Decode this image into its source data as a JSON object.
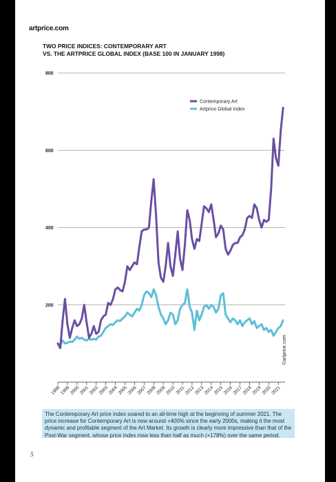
{
  "logo": "artprice.com",
  "title_line1": "TWO PRICE INDICES: CONTEMPORARY ART",
  "title_line2": "VS. THE ARTPRICE GLOBAL INDEX (BASE 100 IN JANUARY 1998)",
  "caption": "The Contemporary Art price index soared to an all-time high at the beginning of summer 2021. The price increase for Contemporary Art is now around +400% since the early 2000s, making it the most dynamic and profitable segment of the Art Market. Its growth is clearly more impressive than that of the Post-War segment, whose price index rose less than half as much (+178%) over the same period.",
  "page_number": "5",
  "chart_data": {
    "type": "line",
    "title": "TWO PRICE INDICES: CONTEMPORARY ART VS. THE ARTPRICE GLOBAL INDEX (BASE 100 IN JANUARY 1998)",
    "xlabel": "",
    "ylabel": "",
    "ylim": [
      0,
      800
    ],
    "xlim": [
      1998,
      2021.7
    ],
    "yticks": [
      200,
      400,
      600,
      800
    ],
    "xticks": [
      "1998",
      "1999",
      "2000",
      "2001",
      "2002",
      "2003",
      "2004",
      "2005",
      "2006",
      "2007",
      "2008",
      "2009",
      "2010",
      "2011",
      "2012",
      "2013",
      "2014",
      "2015",
      "2016",
      "2017",
      "2018",
      "2019",
      "2020",
      "2021"
    ],
    "grid": "horizontal",
    "legend_position": "top-right",
    "watermark": "©artprice.com",
    "colors": {
      "contemporary": "#6a4ea3",
      "global": "#5cbfd6"
    },
    "series": [
      {
        "name": "Contemporary Art",
        "x": [
          1998.0,
          1998.25,
          1998.5,
          1998.75,
          1999.0,
          1999.25,
          1999.5,
          1999.75,
          2000.0,
          2000.25,
          2000.5,
          2000.75,
          2001.0,
          2001.25,
          2001.5,
          2001.75,
          2002.0,
          2002.25,
          2002.5,
          2002.75,
          2003.0,
          2003.25,
          2003.5,
          2003.75,
          2004.0,
          2004.25,
          2004.5,
          2004.75,
          2005.0,
          2005.25,
          2005.5,
          2005.75,
          2006.0,
          2006.25,
          2006.5,
          2006.75,
          2007.0,
          2007.25,
          2007.5,
          2007.75,
          2008.0,
          2008.25,
          2008.5,
          2008.75,
          2009.0,
          2009.25,
          2009.5,
          2009.75,
          2010.0,
          2010.25,
          2010.5,
          2010.75,
          2011.0,
          2011.25,
          2011.5,
          2011.75,
          2012.0,
          2012.25,
          2012.5,
          2012.75,
          2013.0,
          2013.25,
          2013.5,
          2013.75,
          2014.0,
          2014.25,
          2014.5,
          2014.75,
          2015.0,
          2015.25,
          2015.5,
          2015.75,
          2016.0,
          2016.25,
          2016.5,
          2016.75,
          2017.0,
          2017.25,
          2017.5,
          2017.75,
          2018.0,
          2018.25,
          2018.5,
          2018.75,
          2019.0,
          2019.25,
          2019.5,
          2019.75,
          2020.0,
          2020.25,
          2020.5,
          2020.75,
          2021.0,
          2021.25,
          2021.5
        ],
        "values": [
          100,
          88,
          160,
          215,
          150,
          115,
          140,
          160,
          145,
          150,
          165,
          200,
          155,
          115,
          125,
          145,
          125,
          130,
          160,
          170,
          175,
          205,
          200,
          215,
          240,
          245,
          238,
          235,
          260,
          300,
          290,
          300,
          310,
          305,
          350,
          390,
          395,
          395,
          400,
          470,
          525,
          430,
          310,
          270,
          260,
          300,
          360,
          300,
          275,
          330,
          390,
          320,
          290,
          355,
          445,
          420,
          370,
          345,
          370,
          365,
          410,
          455,
          450,
          440,
          460,
          420,
          375,
          385,
          405,
          395,
          345,
          330,
          340,
          355,
          360,
          360,
          375,
          380,
          395,
          425,
          430,
          425,
          460,
          450,
          420,
          400,
          420,
          415,
          420,
          500,
          630,
          580,
          560,
          650,
          710
        ]
      },
      {
        "name": "Artprice Global Index",
        "x": [
          1998.0,
          1998.25,
          1998.5,
          1998.75,
          1999.0,
          1999.25,
          1999.5,
          1999.75,
          2000.0,
          2000.25,
          2000.5,
          2000.75,
          2001.0,
          2001.25,
          2001.5,
          2001.75,
          2002.0,
          2002.25,
          2002.5,
          2002.75,
          2003.0,
          2003.25,
          2003.5,
          2003.75,
          2004.0,
          2004.25,
          2004.5,
          2004.75,
          2005.0,
          2005.25,
          2005.5,
          2005.75,
          2006.0,
          2006.25,
          2006.5,
          2006.75,
          2007.0,
          2007.25,
          2007.5,
          2007.75,
          2008.0,
          2008.25,
          2008.5,
          2008.75,
          2009.0,
          2009.25,
          2009.5,
          2009.75,
          2010.0,
          2010.25,
          2010.5,
          2010.75,
          2011.0,
          2011.25,
          2011.5,
          2011.75,
          2012.0,
          2012.25,
          2012.5,
          2012.75,
          2013.0,
          2013.25,
          2013.5,
          2013.75,
          2014.0,
          2014.25,
          2014.5,
          2014.75,
          2015.0,
          2015.25,
          2015.5,
          2015.75,
          2016.0,
          2016.25,
          2016.5,
          2016.75,
          2017.0,
          2017.25,
          2017.5,
          2017.75,
          2018.0,
          2018.25,
          2018.5,
          2018.75,
          2019.0,
          2019.25,
          2019.5,
          2019.75,
          2020.0,
          2020.25,
          2020.5,
          2020.75,
          2021.0,
          2021.25,
          2021.5
        ],
        "values": [
          100,
          95,
          108,
          100,
          102,
          105,
          104,
          110,
          118,
          112,
          115,
          110,
          108,
          112,
          110,
          112,
          110,
          118,
          120,
          130,
          140,
          145,
          150,
          148,
          155,
          160,
          158,
          165,
          170,
          180,
          175,
          170,
          180,
          190,
          185,
          200,
          225,
          235,
          230,
          220,
          240,
          225,
          195,
          175,
          165,
          150,
          160,
          180,
          175,
          150,
          160,
          190,
          200,
          205,
          240,
          195,
          180,
          135,
          185,
          160,
          175,
          195,
          200,
          190,
          200,
          195,
          180,
          190,
          225,
          230,
          175,
          165,
          155,
          165,
          160,
          150,
          160,
          145,
          155,
          160,
          165,
          150,
          158,
          140,
          145,
          150,
          135,
          140,
          130,
          135,
          120,
          130,
          140,
          145,
          160
        ]
      }
    ]
  }
}
